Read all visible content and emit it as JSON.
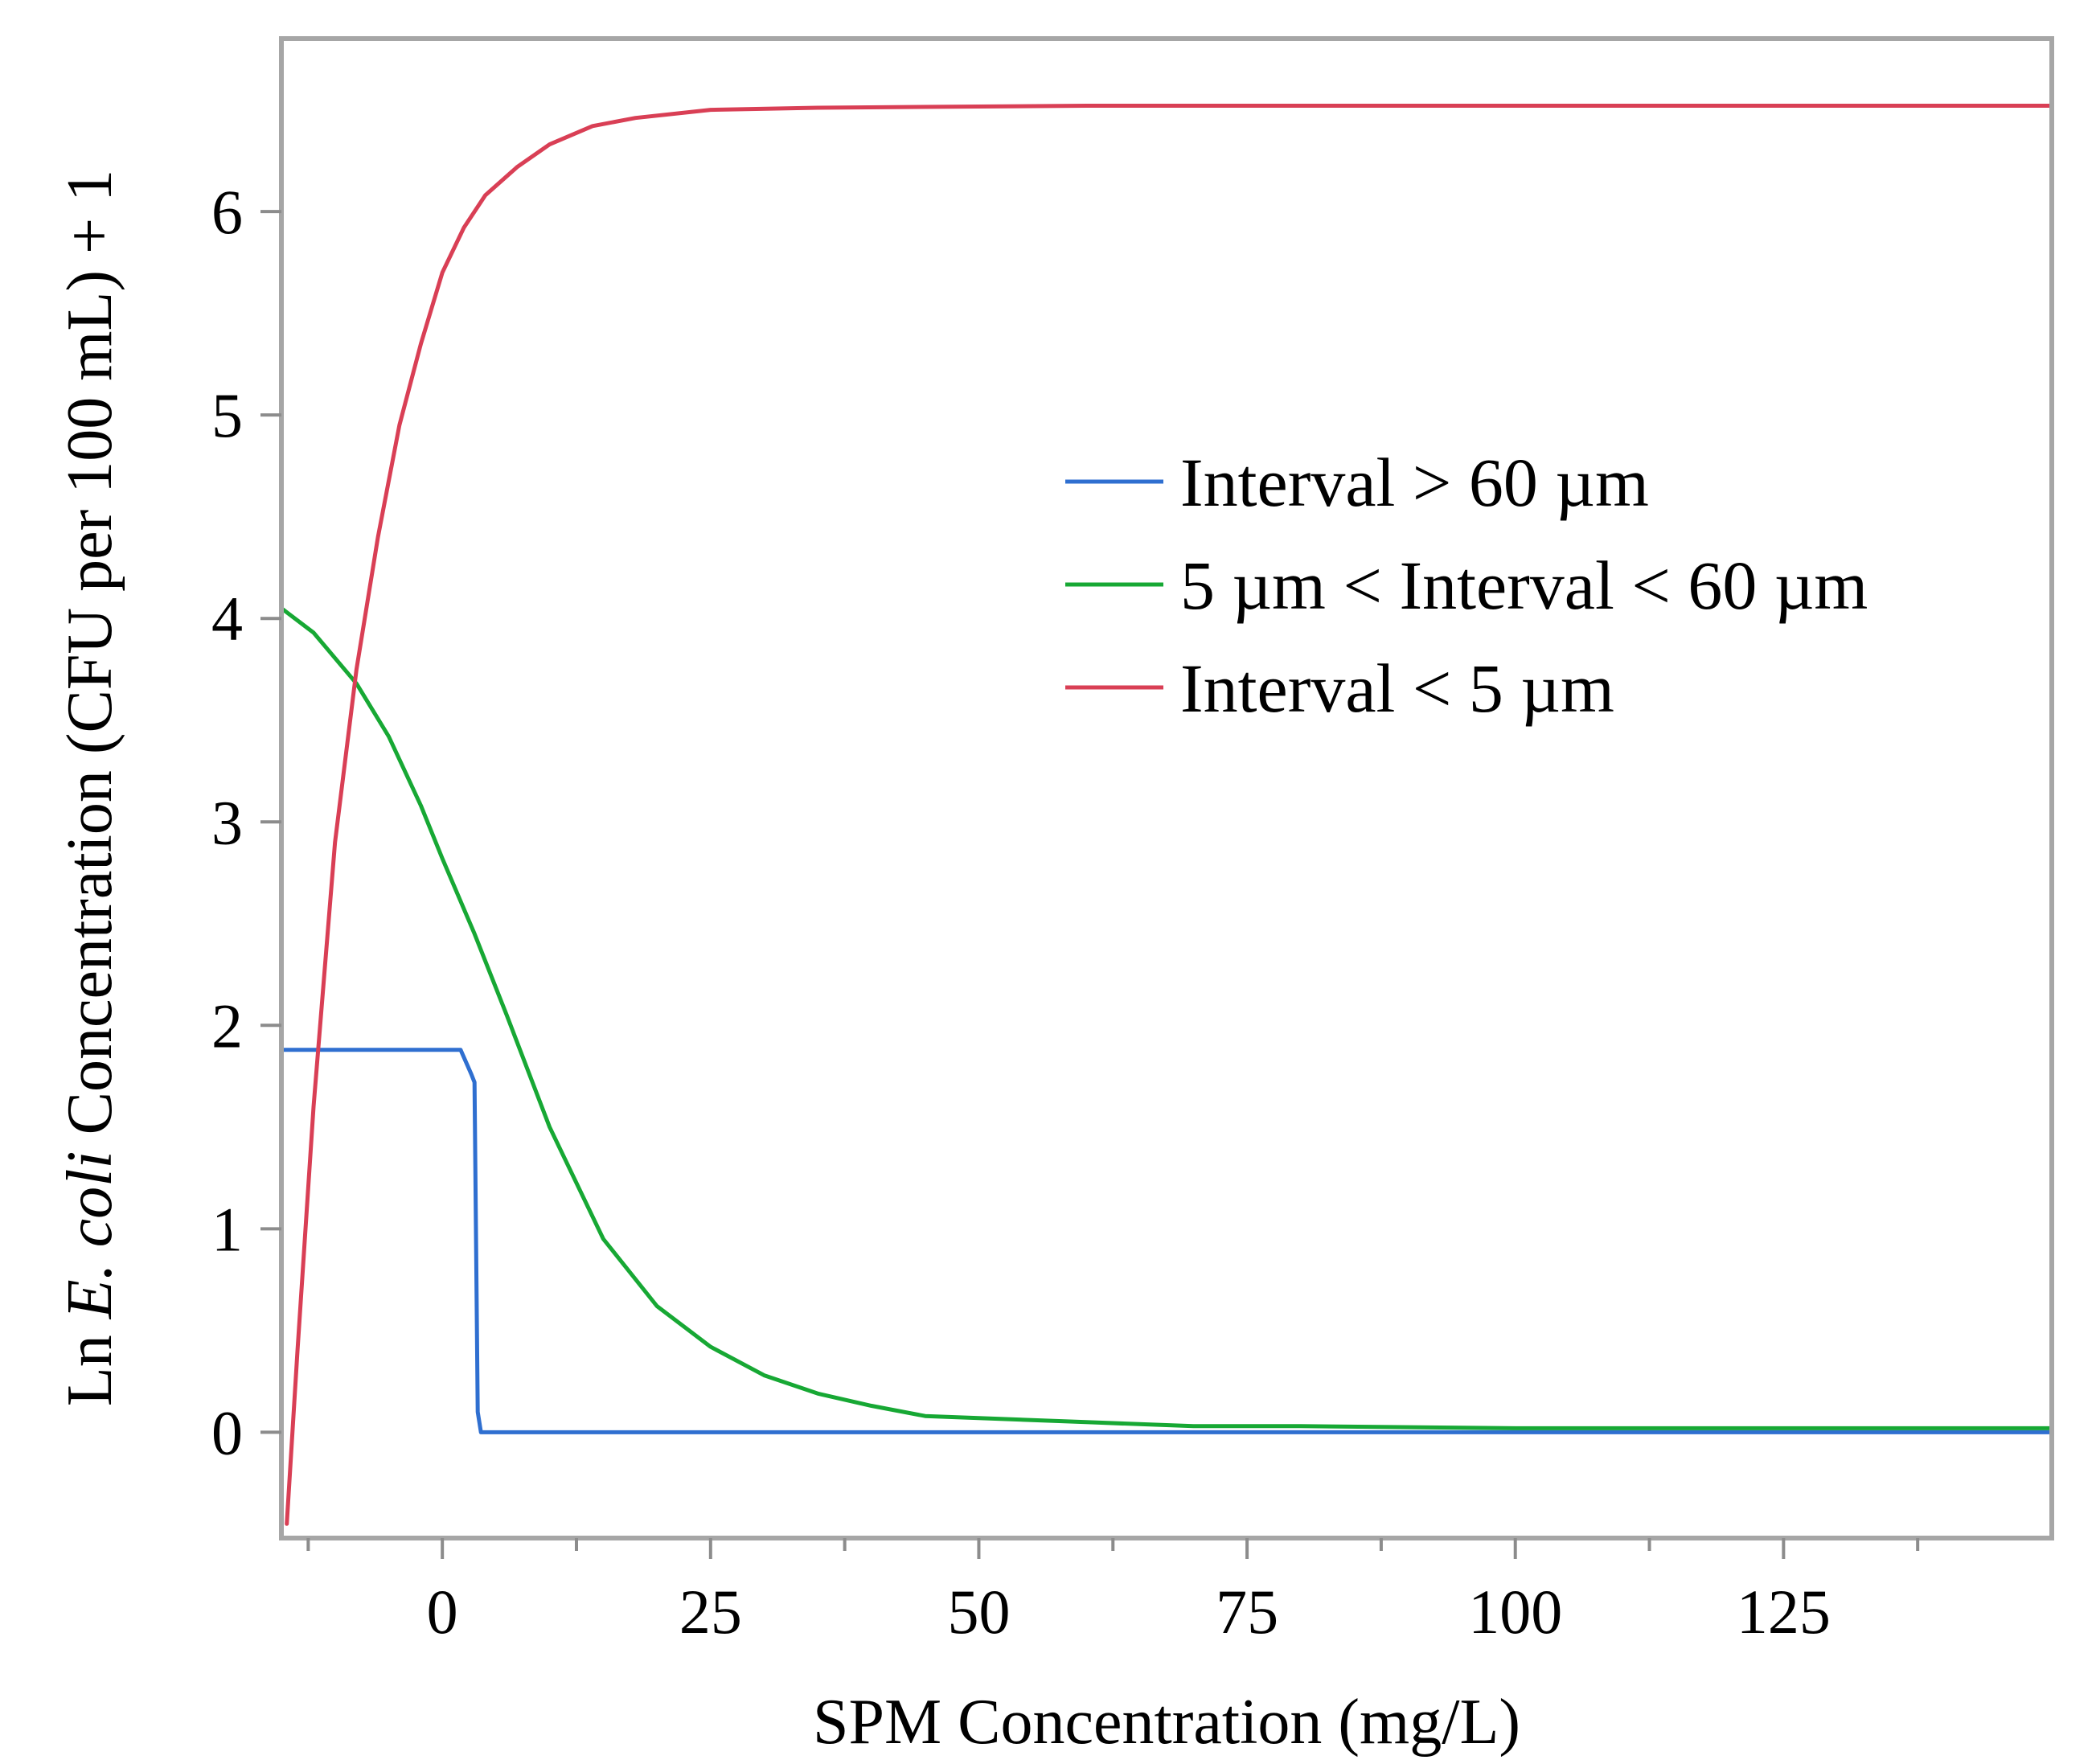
{
  "chart_data": {
    "type": "line",
    "title": "",
    "xlabel": "SPM Concentration (mg/L)",
    "ylabel_parts": [
      "Ln ",
      "E. coli",
      " Concentration (CFU per 100 mL) + 1"
    ],
    "xlim": [
      -15,
      150
    ],
    "ylim": [
      -0.52,
      6.85
    ],
    "x_ticks": [
      {
        "value": 0,
        "label": "0"
      },
      {
        "value": 25,
        "label": "25"
      },
      {
        "value": 50,
        "label": "50"
      },
      {
        "value": 75,
        "label": "75"
      },
      {
        "value": 100,
        "label": "100"
      },
      {
        "value": 125,
        "label": "125"
      }
    ],
    "x_minor_ticks": [
      -12.5,
      12.5,
      37.5,
      62.5,
      87.5,
      112.5,
      137.5
    ],
    "y_ticks": [
      {
        "value": 0,
        "label": "0"
      },
      {
        "value": 1,
        "label": "1"
      },
      {
        "value": 2,
        "label": "2"
      },
      {
        "value": 3,
        "label": "3"
      },
      {
        "value": 4,
        "label": "4"
      },
      {
        "value": 5,
        "label": "5"
      },
      {
        "value": 6,
        "label": "6"
      }
    ],
    "legend_position": "center-right",
    "series": [
      {
        "name": "Interval > 60 µm",
        "color": "#2f6fd0",
        "x": [
          -15,
          1.7,
          2.7,
          3.0,
          3.3,
          3.6,
          150
        ],
        "y": [
          1.88,
          1.88,
          1.76,
          1.72,
          0.1,
          0.0,
          0.0
        ]
      },
      {
        "name": "5 µm < Interval < 60 µm",
        "color": "#17a834",
        "x": [
          -15,
          -12,
          -8,
          -5,
          -2,
          0,
          3,
          6,
          10,
          15,
          20,
          25,
          30,
          35,
          40,
          45,
          50,
          60,
          70,
          80,
          100,
          125,
          150
        ],
        "y": [
          4.05,
          3.93,
          3.68,
          3.42,
          3.08,
          2.82,
          2.45,
          2.05,
          1.5,
          0.95,
          0.62,
          0.42,
          0.28,
          0.19,
          0.13,
          0.08,
          0.07,
          0.05,
          0.03,
          0.03,
          0.02,
          0.02,
          0.02
        ]
      },
      {
        "name": "Interval < 5 µm",
        "color": "#d93f55",
        "x": [
          -14.5,
          -13.5,
          -12,
          -10,
          -8,
          -6,
          -4,
          -2,
          0,
          2,
          4,
          7,
          10,
          14,
          18,
          25,
          35,
          60,
          100,
          150
        ],
        "y": [
          -0.45,
          0.4,
          1.6,
          2.9,
          3.75,
          4.4,
          4.95,
          5.35,
          5.7,
          5.92,
          6.08,
          6.22,
          6.33,
          6.42,
          6.46,
          6.5,
          6.51,
          6.52,
          6.52,
          6.52
        ]
      }
    ]
  }
}
